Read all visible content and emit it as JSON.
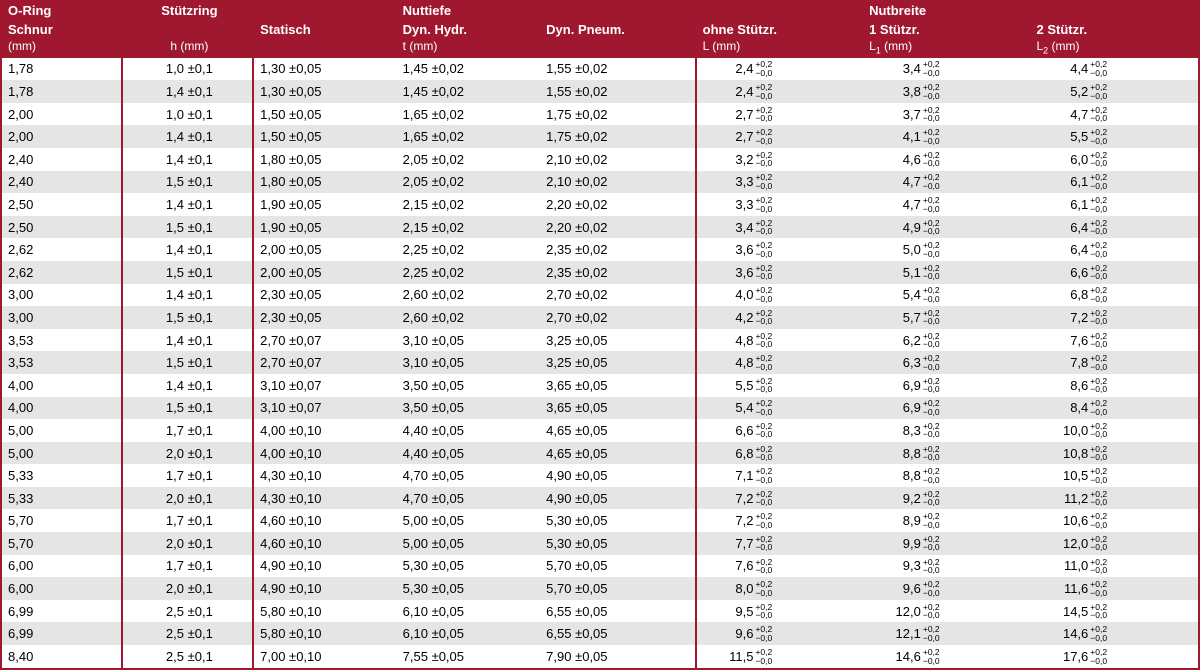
{
  "table": {
    "header": {
      "col0_l1": "O-Ring",
      "col0_l2": "Schnur",
      "col0_l3": "(mm)",
      "col1_l1": "Stützring",
      "col1_l3": "h (mm)",
      "group2_title": "Nuttiefe",
      "col2_l2": "Statisch",
      "col3_l2": "Dyn. Hydr.",
      "col3_l3": "t (mm)",
      "col4_l2": "Dyn. Pneum.",
      "group3_title": "Nutbreite",
      "col5_l2": "ohne Stützr.",
      "col5_l3": "L (mm)",
      "col6_l2": "1 Stützr.",
      "col6_l3_html": "L<sub>1</sub> (mm)",
      "col7_l2": "2 Stützr.",
      "col7_l3_html": "L<sub>2</sub> (mm)"
    },
    "tol_nb": {
      "up": "+0,2",
      "dn": "−0,0"
    },
    "rows": [
      {
        "a": "1,78",
        "b": "1,0 ±0,1",
        "c": "1,30 ±0,05",
        "d": "1,45 ±0,02",
        "e": "1,55 ±0,02",
        "f": "2,4",
        "g": "3,4",
        "h": "4,4"
      },
      {
        "a": "1,78",
        "b": "1,4 ±0,1",
        "c": "1,30 ±0,05",
        "d": "1,45 ±0,02",
        "e": "1,55 ±0,02",
        "f": "2,4",
        "g": "3,8",
        "h": "5,2"
      },
      {
        "a": "2,00",
        "b": "1,0 ±0,1",
        "c": "1,50 ±0,05",
        "d": "1,65 ±0,02",
        "e": "1,75 ±0,02",
        "f": "2,7",
        "g": "3,7",
        "h": "4,7"
      },
      {
        "a": "2,00",
        "b": "1,4 ±0,1",
        "c": "1,50 ±0,05",
        "d": "1,65 ±0,02",
        "e": "1,75 ±0,02",
        "f": "2,7",
        "g": "4,1",
        "h": "5,5"
      },
      {
        "a": "2,40",
        "b": "1,4 ±0,1",
        "c": "1,80 ±0,05",
        "d": "2,05 ±0,02",
        "e": "2,10 ±0,02",
        "f": "3,2",
        "g": "4,6",
        "h": "6,0"
      },
      {
        "a": "2,40",
        "b": "1,5 ±0,1",
        "c": "1,80 ±0,05",
        "d": "2,05 ±0,02",
        "e": "2,10 ±0,02",
        "f": "3,3",
        "g": "4,7",
        "h": "6,1"
      },
      {
        "a": "2,50",
        "b": "1,4 ±0,1",
        "c": "1,90 ±0,05",
        "d": "2,15 ±0,02",
        "e": "2,20 ±0,02",
        "f": "3,3",
        "g": "4,7",
        "h": "6,1"
      },
      {
        "a": "2,50",
        "b": "1,5 ±0,1",
        "c": "1,90 ±0,05",
        "d": "2,15 ±0,02",
        "e": "2,20 ±0,02",
        "f": "3,4",
        "g": "4,9",
        "h": "6,4"
      },
      {
        "a": "2,62",
        "b": "1,4 ±0,1",
        "c": "2,00 ±0,05",
        "d": "2,25 ±0,02",
        "e": "2,35 ±0,02",
        "f": "3,6",
        "g": "5,0",
        "h": "6,4"
      },
      {
        "a": "2,62",
        "b": "1,5 ±0,1",
        "c": "2,00 ±0,05",
        "d": "2,25 ±0,02",
        "e": "2,35 ±0,02",
        "f": "3,6",
        "g": "5,1",
        "h": "6,6"
      },
      {
        "a": "3,00",
        "b": "1,4 ±0,1",
        "c": "2,30 ±0,05",
        "d": "2,60 ±0,02",
        "e": "2,70 ±0,02",
        "f": "4,0",
        "g": "5,4",
        "h": "6,8"
      },
      {
        "a": "3,00",
        "b": "1,5 ±0,1",
        "c": "2,30 ±0,05",
        "d": "2,60 ±0,02",
        "e": "2,70 ±0,02",
        "f": "4,2",
        "g": "5,7",
        "h": "7,2"
      },
      {
        "a": "3,53",
        "b": "1,4 ±0,1",
        "c": "2,70 ±0,07",
        "d": "3,10 ±0,05",
        "e": "3,25 ±0,05",
        "f": "4,8",
        "g": "6,2",
        "h": "7,6"
      },
      {
        "a": "3,53",
        "b": "1,5 ±0,1",
        "c": "2,70 ±0,07",
        "d": "3,10 ±0,05",
        "e": "3,25 ±0,05",
        "f": "4,8",
        "g": "6,3",
        "h": "7,8"
      },
      {
        "a": "4,00",
        "b": "1,4 ±0,1",
        "c": "3,10 ±0,07",
        "d": "3,50 ±0,05",
        "e": "3,65 ±0,05",
        "f": "5,5",
        "g": "6,9",
        "h": "8,6"
      },
      {
        "a": "4,00",
        "b": "1,5 ±0,1",
        "c": "3,10 ±0,07",
        "d": "3,50 ±0,05",
        "e": "3,65 ±0,05",
        "f": "5,4",
        "g": "6,9",
        "h": "8,4"
      },
      {
        "a": "5,00",
        "b": "1,7 ±0,1",
        "c": "4,00 ±0,10",
        "d": "4,40 ±0,05",
        "e": "4,65 ±0,05",
        "f": "6,6",
        "g": "8,3",
        "h": "10,0"
      },
      {
        "a": "5,00",
        "b": "2,0 ±0,1",
        "c": "4,00 ±0,10",
        "d": "4,40 ±0,05",
        "e": "4,65 ±0,05",
        "f": "6,8",
        "g": "8,8",
        "h": "10,8"
      },
      {
        "a": "5,33",
        "b": "1,7 ±0,1",
        "c": "4,30 ±0,10",
        "d": "4,70 ±0,05",
        "e": "4,90 ±0,05",
        "f": "7,1",
        "g": "8,8",
        "h": "10,5"
      },
      {
        "a": "5,33",
        "b": "2,0 ±0,1",
        "c": "4,30 ±0,10",
        "d": "4,70 ±0,05",
        "e": "4,90 ±0,05",
        "f": "7,2",
        "g": "9,2",
        "h": "11,2"
      },
      {
        "a": "5,70",
        "b": "1,7 ±0,1",
        "c": "4,60 ±0,10",
        "d": "5,00 ±0,05",
        "e": "5,30 ±0,05",
        "f": "7,2",
        "g": "8,9",
        "h": "10,6"
      },
      {
        "a": "5,70",
        "b": "2,0 ±0,1",
        "c": "4,60 ±0,10",
        "d": "5,00 ±0,05",
        "e": "5,30 ±0,05",
        "f": "7,7",
        "g": "9,9",
        "h": "12,0"
      },
      {
        "a": "6,00",
        "b": "1,7 ±0,1",
        "c": "4,90 ±0,10",
        "d": "5,30 ±0,05",
        "e": "5,70 ±0,05",
        "f": "7,6",
        "g": "9,3",
        "h": "11,0"
      },
      {
        "a": "6,00",
        "b": "2,0 ±0,1",
        "c": "4,90 ±0,10",
        "d": "5,30 ±0,05",
        "e": "5,70 ±0,05",
        "f": "8,0",
        "g": "9,6",
        "h": "11,6"
      },
      {
        "a": "6,99",
        "b": "2,5 ±0,1",
        "c": "5,80 ±0,10",
        "d": "6,10 ±0,05",
        "e": "6,55 ±0,05",
        "f": "9,5",
        "g": "12,0",
        "h": "14,5"
      },
      {
        "a": "6,99",
        "b": "2,5 ±0,1",
        "c": "5,80 ±0,10",
        "d": "6,10 ±0,05",
        "e": "6,55 ±0,05",
        "f": "9,6",
        "g": "12,1",
        "h": "14,6"
      },
      {
        "a": "8,40",
        "b": "2,5 ±0,1",
        "c": "7,00 ±0,10",
        "d": "7,55 ±0,05",
        "e": "7,90 ±0,05",
        "f": "11,5",
        "g": "14,6",
        "h": "17,6"
      }
    ],
    "colors": {
      "brand": "#a01830",
      "rowAlt": "#e5e5e5",
      "text": "#000"
    }
  }
}
